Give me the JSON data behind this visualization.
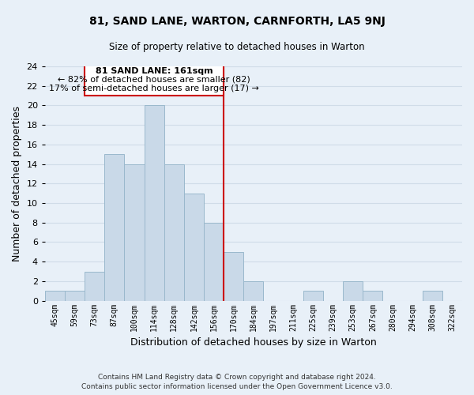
{
  "title": "81, SAND LANE, WARTON, CARNFORTH, LA5 9NJ",
  "subtitle": "Size of property relative to detached houses in Warton",
  "xlabel": "Distribution of detached houses by size in Warton",
  "ylabel": "Number of detached properties",
  "bar_labels": [
    "45sqm",
    "59sqm",
    "73sqm",
    "87sqm",
    "100sqm",
    "114sqm",
    "128sqm",
    "142sqm",
    "156sqm",
    "170sqm",
    "184sqm",
    "197sqm",
    "211sqm",
    "225sqm",
    "239sqm",
    "253sqm",
    "267sqm",
    "280sqm",
    "294sqm",
    "308sqm",
    "322sqm"
  ],
  "bar_values": [
    1,
    1,
    3,
    15,
    14,
    20,
    14,
    11,
    8,
    5,
    2,
    0,
    0,
    1,
    0,
    2,
    1,
    0,
    0,
    1,
    0
  ],
  "bar_color": "#c9d9e8",
  "bar_edge_color": "#9ab8cc",
  "background_color": "#e8f0f8",
  "grid_color": "#d0dce8",
  "vline_color": "#cc0000",
  "annotation_title": "81 SAND LANE: 161sqm",
  "annotation_line1": "← 82% of detached houses are smaller (82)",
  "annotation_line2": "17% of semi-detached houses are larger (17) →",
  "annotation_box_color": "#ffffff",
  "annotation_box_edge": "#cc0000",
  "ylim": [
    0,
    24
  ],
  "yticks": [
    0,
    2,
    4,
    6,
    8,
    10,
    12,
    14,
    16,
    18,
    20,
    22,
    24
  ],
  "footer1": "Contains HM Land Registry data © Crown copyright and database right 2024.",
  "footer2": "Contains public sector information licensed under the Open Government Licence v3.0."
}
